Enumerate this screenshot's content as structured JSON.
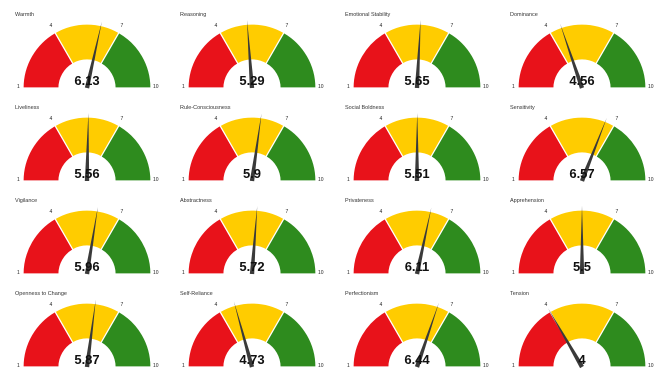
{
  "chart_data": [
    {
      "type": "gauge",
      "title": "Warmth",
      "value": 6.13,
      "value_label": "6.13",
      "scale_min": 1,
      "scale_max": 10,
      "thresholds": [
        4,
        7
      ],
      "tick_labels": [
        "1",
        "4",
        "7",
        "10"
      ]
    },
    {
      "type": "gauge",
      "title": "Reasoning",
      "value": 5.29,
      "value_label": "5.29",
      "scale_min": 1,
      "scale_max": 10,
      "thresholds": [
        4,
        7
      ],
      "tick_labels": [
        "1",
        "4",
        "7",
        "10"
      ]
    },
    {
      "type": "gauge",
      "title": "Emotional Stability",
      "value": 5.65,
      "value_label": "5.65",
      "scale_min": 1,
      "scale_max": 10,
      "thresholds": [
        4,
        7
      ],
      "tick_labels": [
        "1",
        "4",
        "7",
        "10"
      ]
    },
    {
      "type": "gauge",
      "title": "Dominance",
      "value": 4.56,
      "value_label": "4.56",
      "scale_min": 1,
      "scale_max": 10,
      "thresholds": [
        4,
        7
      ],
      "tick_labels": [
        "1",
        "4",
        "7",
        "10"
      ]
    },
    {
      "type": "gauge",
      "title": "Liveliness",
      "value": 5.56,
      "value_label": "5.56",
      "scale_min": 1,
      "scale_max": 10,
      "thresholds": [
        4,
        7
      ],
      "tick_labels": [
        "1",
        "4",
        "7",
        "10"
      ]
    },
    {
      "type": "gauge",
      "title": "Rule-Consciousness",
      "value": 5.9,
      "value_label": "5.9",
      "scale_min": 1,
      "scale_max": 10,
      "thresholds": [
        4,
        7
      ],
      "tick_labels": [
        "1",
        "4",
        "7",
        "10"
      ]
    },
    {
      "type": "gauge",
      "title": "Social Boldness",
      "value": 5.51,
      "value_label": "5.51",
      "scale_min": 1,
      "scale_max": 10,
      "thresholds": [
        4,
        7
      ],
      "tick_labels": [
        "1",
        "4",
        "7",
        "10"
      ]
    },
    {
      "type": "gauge",
      "title": "Sensitivity",
      "value": 6.57,
      "value_label": "6.57",
      "scale_min": 1,
      "scale_max": 10,
      "thresholds": [
        4,
        7
      ],
      "tick_labels": [
        "1",
        "4",
        "7",
        "10"
      ]
    },
    {
      "type": "gauge",
      "title": "Vigilance",
      "value": 5.96,
      "value_label": "5.96",
      "scale_min": 1,
      "scale_max": 10,
      "thresholds": [
        4,
        7
      ],
      "tick_labels": [
        "1",
        "4",
        "7",
        "10"
      ]
    },
    {
      "type": "gauge",
      "title": "Abstractness",
      "value": 5.72,
      "value_label": "5.72",
      "scale_min": 1,
      "scale_max": 10,
      "thresholds": [
        4,
        7
      ],
      "tick_labels": [
        "1",
        "4",
        "7",
        "10"
      ]
    },
    {
      "type": "gauge",
      "title": "Privateness",
      "value": 6.11,
      "value_label": "6.11",
      "scale_min": 1,
      "scale_max": 10,
      "thresholds": [
        4,
        7
      ],
      "tick_labels": [
        "1",
        "4",
        "7",
        "10"
      ]
    },
    {
      "type": "gauge",
      "title": "Apprehension",
      "value": 5.5,
      "value_label": "5.5",
      "scale_min": 1,
      "scale_max": 10,
      "thresholds": [
        4,
        7
      ],
      "tick_labels": [
        "1",
        "4",
        "7",
        "10"
      ]
    },
    {
      "type": "gauge",
      "title": "Openness to Change",
      "value": 5.87,
      "value_label": "5.87",
      "scale_min": 1,
      "scale_max": 10,
      "thresholds": [
        4,
        7
      ],
      "tick_labels": [
        "1",
        "4",
        "7",
        "10"
      ]
    },
    {
      "type": "gauge",
      "title": "Self-Reliance",
      "value": 4.73,
      "value_label": "4.73",
      "scale_min": 1,
      "scale_max": 10,
      "thresholds": [
        4,
        7
      ],
      "tick_labels": [
        "1",
        "4",
        "7",
        "10"
      ]
    },
    {
      "type": "gauge",
      "title": "Perfectionism",
      "value": 6.44,
      "value_label": "6.44",
      "scale_min": 1,
      "scale_max": 10,
      "thresholds": [
        4,
        7
      ],
      "tick_labels": [
        "1",
        "4",
        "7",
        "10"
      ]
    },
    {
      "type": "gauge",
      "title": "Tension",
      "value": 4,
      "value_label": "4",
      "scale_min": 1,
      "scale_max": 10,
      "thresholds": [
        4,
        7
      ],
      "tick_labels": [
        "1",
        "4",
        "7",
        "10"
      ]
    }
  ],
  "colors": {
    "low": "#e8121a",
    "mid": "#ffcc00",
    "high": "#2e8b1e",
    "needle": "#3a3a3a",
    "outline": "#ffffff"
  }
}
